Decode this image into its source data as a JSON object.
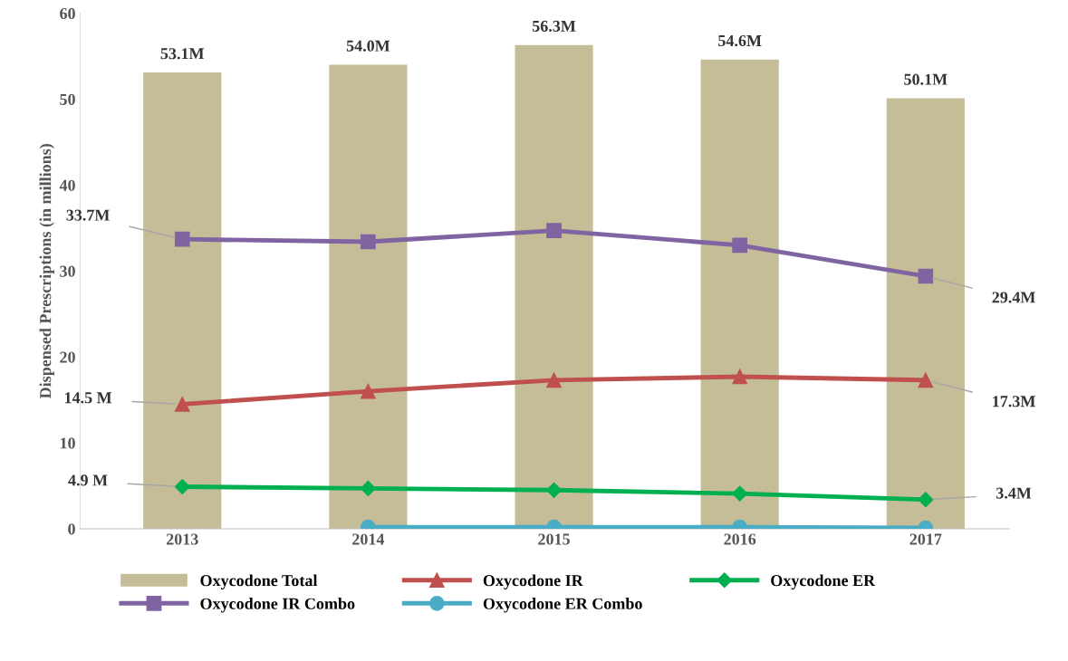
{
  "chart_data": {
    "type": "bar",
    "categories": [
      "2013",
      "2014",
      "2015",
      "2016",
      "2017"
    ],
    "ylabel": "Dispensed Prescriptions (in millions)",
    "ylim": [
      0,
      60
    ],
    "yticks": [
      0,
      10,
      20,
      30,
      40,
      50,
      60
    ],
    "legend": "bottom",
    "series": [
      {
        "name": "Oxycodone Total",
        "color": "#c4bd97",
        "values": [
          53.1,
          54.0,
          56.3,
          54.6,
          50.1
        ],
        "value_labels": [
          "53.1M",
          "54.0M",
          "56.3M",
          "54.6M",
          "50.1M"
        ]
      },
      {
        "name": "Oxycodone IR",
        "type": "line",
        "marker": "triangle",
        "color": "#c0504d",
        "values": [
          14.5,
          16.0,
          17.3,
          17.7,
          17.3
        ],
        "value_labels": [
          "14.5 M",
          null,
          null,
          null,
          "17.3M"
        ]
      },
      {
        "name": "Oxycodone ER",
        "type": "line",
        "marker": "diamond",
        "color": "#00b050",
        "values": [
          4.9,
          4.7,
          4.5,
          4.1,
          3.4
        ],
        "value_labels": [
          "4.9 M",
          null,
          null,
          null,
          "3.4M"
        ]
      },
      {
        "name": "Oxycodone IR Combo",
        "type": "line",
        "marker": "square",
        "color": "#8064a2",
        "values": [
          33.7,
          33.4,
          34.7,
          33.0,
          29.4
        ],
        "value_labels": [
          "33.7M",
          null,
          null,
          null,
          "29.4M"
        ]
      },
      {
        "name": "Oxycodone ER Combo",
        "type": "line",
        "marker": "circle",
        "color": "#4bacc6",
        "values": [
          null,
          0.2,
          0.2,
          0.2,
          0.1
        ]
      }
    ]
  }
}
